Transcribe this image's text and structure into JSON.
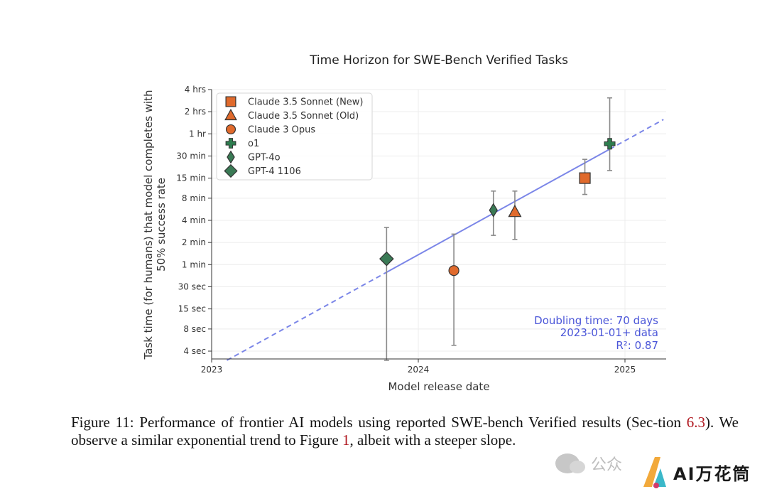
{
  "chart_data": {
    "type": "scatter",
    "title": "Time Horizon for SWE-Bench Verified Tasks",
    "xlabel": "Model release date",
    "ylabel_line1": "Task time (for humans) that model completes with",
    "ylabel_line2": "50% success rate",
    "y_scale": "log",
    "x_ticks": [
      "2023",
      "2024",
      "2025"
    ],
    "y_ticks": [
      "4 sec",
      "8 sec",
      "15 sec",
      "30 sec",
      "1 min",
      "2 min",
      "4 min",
      "8 min",
      "15 min",
      "30 min",
      "1 hr",
      "2 hrs",
      "4 hrs"
    ],
    "grid": true,
    "legend_placement": "top-left",
    "series": [
      {
        "name": "Claude 3.5 Sonnet (New)",
        "marker": "square",
        "color": "#e06a2c",
        "date": "2024-10-22",
        "y_min": 15.0,
        "err_low_min": 9.0,
        "err_high_min": 27.0
      },
      {
        "name": "Claude 3.5 Sonnet (Old)",
        "marker": "triangle",
        "color": "#e06a2c",
        "date": "2024-06-20",
        "y_min": 5.2,
        "err_low_min": 2.2,
        "err_high_min": 10.0
      },
      {
        "name": "Claude 3 Opus",
        "marker": "circle",
        "color": "#e06a2c",
        "date": "2024-03-04",
        "y_min": 0.83,
        "err_low_min": 0.08,
        "err_high_min": 2.6
      },
      {
        "name": "o1",
        "marker": "plus",
        "color": "#2e7d4f",
        "date": "2024-12-05",
        "y_min": 44.0,
        "err_low_min": 19.0,
        "err_high_min": 185.0
      },
      {
        "name": "GPT-4o",
        "marker": "thin-diamond",
        "color": "#3a7a55",
        "date": "2024-05-13",
        "y_min": 5.5,
        "err_low_min": 2.5,
        "err_high_min": 10.0
      },
      {
        "name": "GPT-4 1106",
        "marker": "diamond",
        "color": "#3a7a55",
        "date": "2023-11-06",
        "y_min": 1.2,
        "err_low_min": 0.05,
        "err_high_min": 3.2
      }
    ],
    "trend": {
      "color": "#7b86e8",
      "points": [
        {
          "date": "2023-01-28",
          "y_min": 0.05
        },
        {
          "date": "2025-03-10",
          "y_min": 94.0
        }
      ],
      "solid_from": "2023-11-06",
      "solid_to": "2024-12-05"
    },
    "annotations": [
      "Doubling time: 70 days",
      "2023-01-01+ data",
      "R²: 0.87"
    ]
  },
  "caption": {
    "prefix": "Figure 11: Performance of frontier AI models using reported SWE-bench Verified results (Sec-tion ",
    "ref1": "6.3",
    "middle": "). We observe a similar exponential trend to Figure ",
    "ref2": "1",
    "suffix": ", albeit with a steeper slope."
  },
  "watermark": {
    "left_icon": "wechat-icon",
    "left_text": "公众",
    "right_icon": "ai-logo-icon",
    "right_text": "AI万花筒"
  }
}
